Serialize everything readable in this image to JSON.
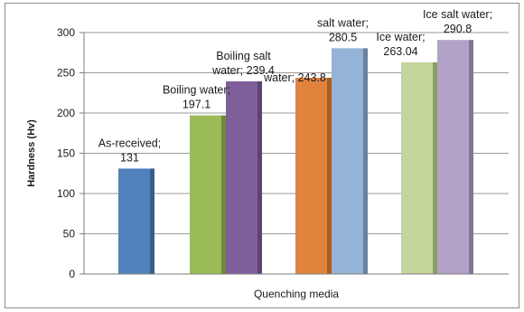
{
  "chart_data": {
    "type": "bar",
    "title": "",
    "xlabel": "Quenching media",
    "ylabel": "Hardness (Hv)",
    "ylim": [
      0,
      300
    ],
    "yticks": [
      0,
      50,
      100,
      150,
      200,
      250,
      300
    ],
    "grid": true,
    "legend": "none",
    "groups": [
      {
        "bars": [
          {
            "value": 131,
            "color": "#4f81bd",
            "label_lines": [
              "As-received;",
              "131"
            ]
          }
        ]
      },
      {
        "bars": [
          {
            "value": 197.1,
            "color": "#9bbb59",
            "label_lines": [
              "Boiling water;",
              "197.1"
            ]
          },
          {
            "value": 239.4,
            "color": "#7f5f9a",
            "label_lines": [
              "Boiling salt",
              "water; 239.4"
            ]
          }
        ]
      },
      {
        "bars": [
          {
            "value": 243.8,
            "color": "#e0843d",
            "label_lines": [
              "water; 243.8"
            ]
          },
          {
            "value": 280.5,
            "color": "#95b3d7",
            "label_lines": [
              "salt water;",
              "280.5"
            ]
          }
        ]
      },
      {
        "bars": [
          {
            "value": 263.04,
            "color": "#c3d69b",
            "label_lines": [
              "Ice  water;",
              "263.04"
            ]
          },
          {
            "value": 290.8,
            "color": "#b3a2c7",
            "label_lines": [
              "Ice  salt water;",
              "290.8"
            ]
          }
        ]
      }
    ]
  }
}
